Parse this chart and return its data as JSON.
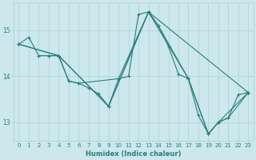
{
  "xlabel": "Humidex (Indice chaleur)",
  "bg_color": "#cce8ec",
  "grid_color": "#b0d4d8",
  "line_color": "#2a7d7d",
  "xlim": [
    -0.5,
    23.5
  ],
  "ylim": [
    12.6,
    15.6
  ],
  "yticks": [
    13,
    14,
    15
  ],
  "xticks": [
    0,
    1,
    2,
    3,
    4,
    5,
    6,
    7,
    8,
    9,
    10,
    11,
    12,
    13,
    14,
    15,
    16,
    17,
    18,
    19,
    20,
    21,
    22,
    23
  ],
  "tick_fontsize": 5.0,
  "xlabel_fontsize": 6.0,
  "ylabel_fontsize": 6.0,
  "series": [
    [
      0,
      14.7
    ],
    [
      1,
      14.85
    ],
    [
      2,
      14.45
    ],
    [
      3,
      14.45
    ],
    [
      4,
      14.45
    ],
    [
      5,
      13.9
    ],
    [
      6,
      13.85
    ],
    [
      7,
      13.75
    ],
    [
      8,
      13.62
    ],
    [
      9,
      13.35
    ],
    [
      10,
      13.95
    ],
    [
      11,
      14.0
    ],
    [
      12,
      15.35
    ],
    [
      13,
      15.4
    ],
    [
      14,
      15.1
    ],
    [
      15,
      14.65
    ],
    [
      16,
      14.05
    ],
    [
      17,
      13.95
    ],
    [
      18,
      13.15
    ],
    [
      19,
      12.75
    ],
    [
      20,
      13.0
    ],
    [
      21,
      13.1
    ],
    [
      22,
      13.6
    ],
    [
      23,
      13.65
    ]
  ],
  "extra_lines": [
    [
      [
        2,
        14.45
      ],
      [
        3,
        14.45
      ],
      [
        4,
        14.45
      ],
      [
        5,
        13.9
      ],
      [
        6,
        13.85
      ],
      [
        10,
        13.95
      ],
      [
        13,
        15.4
      ],
      [
        14,
        15.1
      ],
      [
        17,
        13.95
      ],
      [
        19,
        12.75
      ],
      [
        20,
        13.0
      ],
      [
        21,
        13.1
      ],
      [
        23,
        13.65
      ]
    ],
    [
      [
        0,
        14.7
      ],
      [
        4,
        14.45
      ],
      [
        9,
        13.35
      ],
      [
        13,
        15.4
      ],
      [
        17,
        13.95
      ],
      [
        19,
        12.75
      ],
      [
        20,
        13.0
      ],
      [
        23,
        13.65
      ]
    ],
    [
      [
        0,
        14.7
      ],
      [
        4,
        14.45
      ],
      [
        9,
        13.35
      ],
      [
        13,
        15.4
      ],
      [
        23,
        13.65
      ]
    ]
  ]
}
